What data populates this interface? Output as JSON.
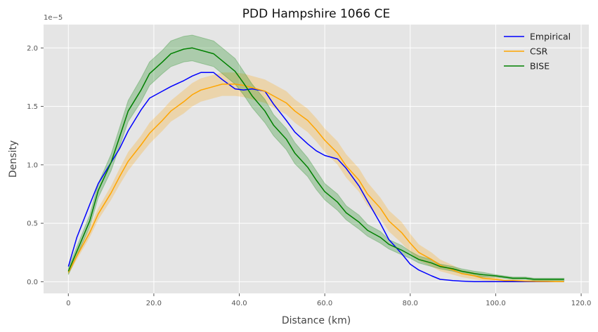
{
  "chart_data": {
    "type": "line",
    "title": "PDD Hampshire 1066 CE",
    "xlabel": "Distance (km)",
    "ylabel": "Density",
    "y_offset_label": "1e−5",
    "y_scale_note": "values in units of 1e-5",
    "xlim": [
      -5.8,
      121.8
    ],
    "ylim": [
      -0.1,
      2.2
    ],
    "x_ticks": [
      0,
      20,
      40,
      60,
      80,
      100,
      120
    ],
    "x_tick_labels": [
      "0",
      "20.0",
      "40.0",
      "60.0",
      "80.0",
      "100.0",
      "120.0"
    ],
    "y_ticks": [
      0,
      0.5,
      1.0,
      1.5,
      2.0
    ],
    "y_tick_labels": [
      "0.0",
      "0.5",
      "1.0",
      "1.5",
      "2.0"
    ],
    "grid": true,
    "legend_position": "top-right",
    "series": [
      {
        "name": "Empirical",
        "color": "#0000ff",
        "x": [
          0,
          2,
          5,
          7,
          10,
          12,
          14,
          17,
          19,
          22,
          24,
          27,
          29,
          31,
          34,
          36,
          39,
          41,
          43,
          46,
          48,
          51,
          53,
          56,
          58,
          60,
          63,
          65,
          68,
          70,
          73,
          75,
          78,
          80,
          82,
          85,
          87,
          90,
          92,
          95,
          97,
          100,
          102,
          104,
          107,
          109,
          112,
          114,
          116
        ],
        "y": [
          0.13,
          0.38,
          0.66,
          0.84,
          1.02,
          1.14,
          1.29,
          1.47,
          1.57,
          1.63,
          1.67,
          1.72,
          1.76,
          1.79,
          1.79,
          1.73,
          1.65,
          1.64,
          1.65,
          1.63,
          1.52,
          1.38,
          1.28,
          1.18,
          1.12,
          1.08,
          1.05,
          0.97,
          0.82,
          0.69,
          0.5,
          0.36,
          0.24,
          0.15,
          0.1,
          0.05,
          0.02,
          0.01,
          0.005,
          0.0,
          0.0,
          0.0,
          0.0,
          0.0,
          0.0,
          0.0,
          0.0,
          0.0,
          0.0
        ]
      },
      {
        "name": "CSR",
        "color": "#ffa500",
        "x": [
          0,
          2,
          5,
          7,
          10,
          12,
          14,
          17,
          19,
          22,
          24,
          27,
          29,
          31,
          34,
          36,
          39,
          41,
          43,
          46,
          48,
          51,
          53,
          56,
          58,
          60,
          63,
          65,
          68,
          70,
          73,
          75,
          78,
          80,
          82,
          85,
          87,
          90,
          92,
          95,
          97,
          100,
          102,
          104,
          107,
          109,
          112,
          114,
          116
        ],
        "y": [
          0.08,
          0.22,
          0.42,
          0.58,
          0.76,
          0.9,
          1.03,
          1.17,
          1.27,
          1.38,
          1.46,
          1.54,
          1.6,
          1.64,
          1.67,
          1.69,
          1.69,
          1.68,
          1.66,
          1.63,
          1.59,
          1.53,
          1.46,
          1.38,
          1.3,
          1.21,
          1.1,
          0.99,
          0.87,
          0.75,
          0.63,
          0.52,
          0.42,
          0.33,
          0.25,
          0.19,
          0.14,
          0.1,
          0.07,
          0.05,
          0.03,
          0.02,
          0.01,
          0.01,
          0.005,
          0.003,
          0.002,
          0.001,
          0.0
        ]
      },
      {
        "name": "BISE",
        "color": "#008000",
        "x": [
          0,
          2,
          5,
          7,
          10,
          12,
          14,
          17,
          19,
          22,
          24,
          27,
          29,
          31,
          34,
          36,
          39,
          41,
          43,
          46,
          48,
          51,
          53,
          56,
          58,
          60,
          63,
          65,
          68,
          70,
          73,
          75,
          78,
          80,
          82,
          85,
          87,
          90,
          92,
          95,
          97,
          100,
          102,
          104,
          107,
          109,
          112,
          114,
          116
        ],
        "y": [
          0.09,
          0.26,
          0.52,
          0.78,
          1.02,
          1.24,
          1.46,
          1.64,
          1.78,
          1.88,
          1.95,
          1.99,
          2.0,
          1.98,
          1.95,
          1.89,
          1.8,
          1.7,
          1.59,
          1.46,
          1.34,
          1.22,
          1.1,
          0.98,
          0.87,
          0.77,
          0.68,
          0.59,
          0.51,
          0.44,
          0.38,
          0.32,
          0.27,
          0.23,
          0.19,
          0.16,
          0.13,
          0.11,
          0.09,
          0.07,
          0.06,
          0.05,
          0.04,
          0.03,
          0.03,
          0.02,
          0.02,
          0.02,
          0.02
        ],
        "band_width": [
          0.03,
          0.04,
          0.05,
          0.06,
          0.07,
          0.08,
          0.09,
          0.1,
          0.1,
          0.1,
          0.11,
          0.11,
          0.11,
          0.11,
          0.11,
          0.11,
          0.11,
          0.1,
          0.1,
          0.1,
          0.09,
          0.09,
          0.09,
          0.08,
          0.08,
          0.07,
          0.07,
          0.06,
          0.06,
          0.05,
          0.05,
          0.04,
          0.04,
          0.03,
          0.03,
          0.03,
          0.02,
          0.02,
          0.02,
          0.02,
          0.02,
          0.01,
          0.01,
          0.01,
          0.01,
          0.01,
          0.01,
          0.01,
          0.01
        ]
      }
    ],
    "csr_band_width": [
      0.02,
      0.03,
      0.04,
      0.05,
      0.06,
      0.07,
      0.08,
      0.08,
      0.09,
      0.09,
      0.09,
      0.1,
      0.1,
      0.1,
      0.1,
      0.1,
      0.1,
      0.1,
      0.1,
      0.1,
      0.1,
      0.1,
      0.1,
      0.1,
      0.1,
      0.1,
      0.1,
      0.1,
      0.1,
      0.1,
      0.09,
      0.09,
      0.09,
      0.08,
      0.07,
      0.06,
      0.05,
      0.04,
      0.03,
      0.03,
      0.02,
      0.02,
      0.01,
      0.01,
      0.01,
      0.01,
      0.01,
      0.01,
      0.01
    ],
    "band_colors": {
      "CSR": "#ffa500",
      "BISE": "#008000"
    },
    "background_color": "#e5e5e5",
    "grid_color": "#ffffff"
  }
}
